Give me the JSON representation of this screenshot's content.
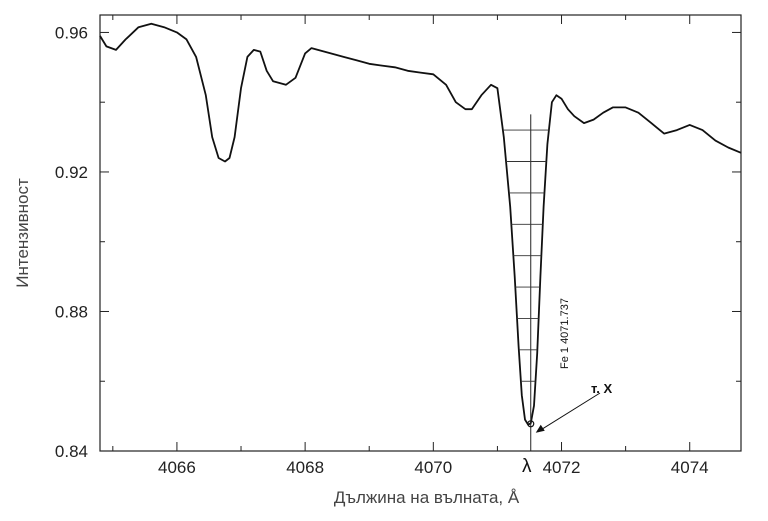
{
  "chart_data": {
    "type": "line",
    "title": "",
    "xlabel": "Дължина на вълната, Å",
    "ylabel": "Интензивност",
    "xlim": [
      4064.8,
      4074.8
    ],
    "ylim": [
      0.84,
      0.965
    ],
    "x_ticks": [
      4066,
      4068,
      4070,
      4072,
      4074
    ],
    "x_tick_labels": [
      "4066",
      "4068",
      "4070",
      "4072",
      "4074"
    ],
    "y_ticks": [
      0.84,
      0.88,
      0.92,
      0.96
    ],
    "y_tick_labels": [
      "0.84",
      "0.88",
      "0.92",
      "0.96"
    ],
    "grid": false,
    "series": [
      {
        "color": "#111111",
        "x": [
          4064.8,
          4064.9,
          4065.05,
          4065.2,
          4065.4,
          4065.6,
          4065.8,
          4066.0,
          4066.15,
          4066.3,
          4066.45,
          4066.55,
          4066.65,
          4066.75,
          4066.82,
          4066.9,
          4067.0,
          4067.1,
          4067.2,
          4067.3,
          4067.4,
          4067.5,
          4067.6,
          4067.7,
          4067.85,
          4068.0,
          4068.1,
          4068.2,
          4068.4,
          4068.6,
          4068.8,
          4069.0,
          4069.2,
          4069.4,
          4069.6,
          4069.8,
          4070.0,
          4070.2,
          4070.35,
          4070.5,
          4070.6,
          4070.75,
          4070.9,
          4071.0,
          4071.1,
          4071.2,
          4071.27,
          4071.33,
          4071.38,
          4071.43,
          4071.48,
          4071.52,
          4071.57,
          4071.62,
          4071.67,
          4071.72,
          4071.78,
          4071.85,
          4071.92,
          4072.0,
          4072.1,
          4072.2,
          4072.35,
          4072.5,
          4072.65,
          4072.8,
          4073.0,
          4073.2,
          4073.4,
          4073.6,
          4073.8,
          4074.0,
          4074.2,
          4074.4,
          4074.6,
          4074.8
        ],
        "y": [
          0.959,
          0.956,
          0.955,
          0.958,
          0.9615,
          0.9625,
          0.9615,
          0.96,
          0.958,
          0.953,
          0.942,
          0.93,
          0.924,
          0.923,
          0.924,
          0.93,
          0.944,
          0.953,
          0.955,
          0.9545,
          0.949,
          0.946,
          0.9455,
          0.945,
          0.947,
          0.954,
          0.9555,
          0.955,
          0.954,
          0.953,
          0.952,
          0.951,
          0.9505,
          0.95,
          0.949,
          0.9485,
          0.948,
          0.945,
          0.94,
          0.938,
          0.938,
          0.942,
          0.945,
          0.944,
          0.93,
          0.91,
          0.89,
          0.87,
          0.856,
          0.849,
          0.8475,
          0.848,
          0.853,
          0.868,
          0.89,
          0.91,
          0.928,
          0.94,
          0.942,
          0.941,
          0.938,
          0.936,
          0.934,
          0.935,
          0.937,
          0.9385,
          0.9385,
          0.937,
          0.934,
          0.931,
          0.932,
          0.9335,
          0.932,
          0.929,
          0.927,
          0.9255
        ]
      }
    ],
    "annotations": {
      "line_id": "Fe 1 4071.737",
      "point_label": "т. X",
      "lambda_symbol": "λ",
      "center_x": 4071.52,
      "bisector_top_y": 0.9365,
      "point_x": 4071.52,
      "point_y": 0.8478
    }
  }
}
